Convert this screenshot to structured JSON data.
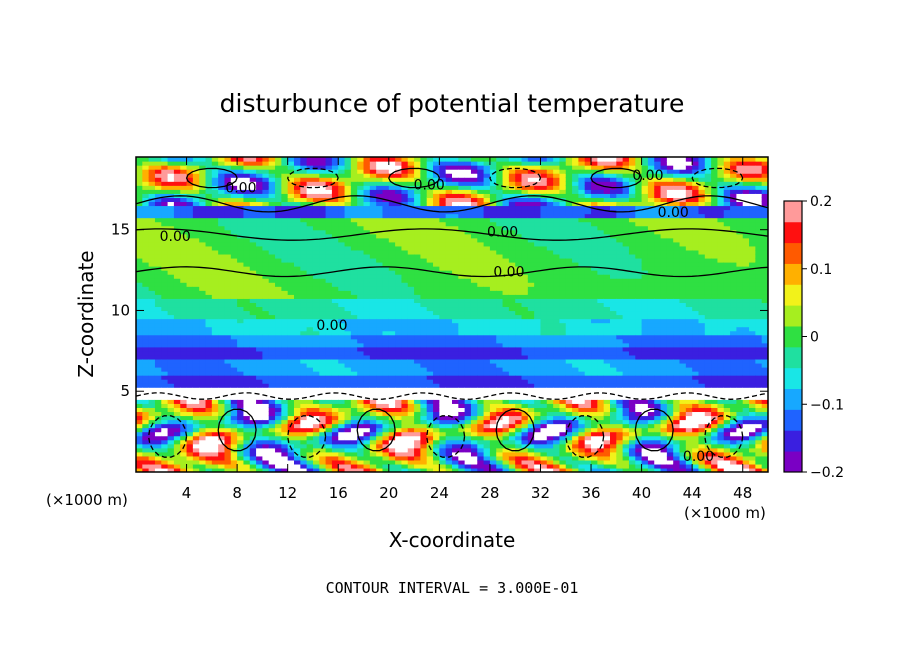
{
  "chart_data": {
    "type": "heatmap",
    "title": "disturbunce of potential temperature",
    "xlabel": "X-coordinate",
    "ylabel": "Z-coordinate",
    "x_unit_note": "(×1000 m)",
    "x_unit_note_right": "(×1000 m)",
    "xlim": [
      0,
      50
    ],
    "ylim": [
      0,
      19.5
    ],
    "x_ticks": [
      4,
      8,
      12,
      16,
      20,
      24,
      28,
      32,
      36,
      40,
      44,
      48
    ],
    "y_ticks": [
      5,
      10,
      15
    ],
    "colorbar": {
      "range": [
        -0.2,
        0.2
      ],
      "tick_values": [
        0.2,
        0.1,
        0,
        -0.1,
        -0.2
      ],
      "tick_labels": [
        "0.2",
        "0.1",
        "0",
        "−0.1",
        "−0.2"
      ],
      "colors": [
        "#7a00c4",
        "#3a1fe0",
        "#1f63ff",
        "#17a8ff",
        "#19e6e6",
        "#1fe0a0",
        "#2fe042",
        "#a6ee1f",
        "#f2f21a",
        "#ffb000",
        "#ff5a00",
        "#ff1010",
        "#ff9a9a"
      ]
    },
    "contour_labels": [
      {
        "text": "0.00",
        "x": 8.3,
        "z": 17.6
      },
      {
        "text": "0.00",
        "x": 23.2,
        "z": 17.8
      },
      {
        "text": "0.00",
        "x": 40.5,
        "z": 18.4
      },
      {
        "text": "0.00",
        "x": 42.5,
        "z": 16.1
      },
      {
        "text": "0.00",
        "x": 3.1,
        "z": 14.6
      },
      {
        "text": "0.00",
        "x": 29.0,
        "z": 14.9
      },
      {
        "text": "0.00",
        "x": 29.5,
        "z": 12.4
      },
      {
        "text": "0.00",
        "x": 15.5,
        "z": 9.1
      },
      {
        "text": "0.00",
        "x": 44.5,
        "z": 1.0
      }
    ],
    "contour_interval_text": "CONTOUR INTERVAL = 3.000E-01"
  }
}
